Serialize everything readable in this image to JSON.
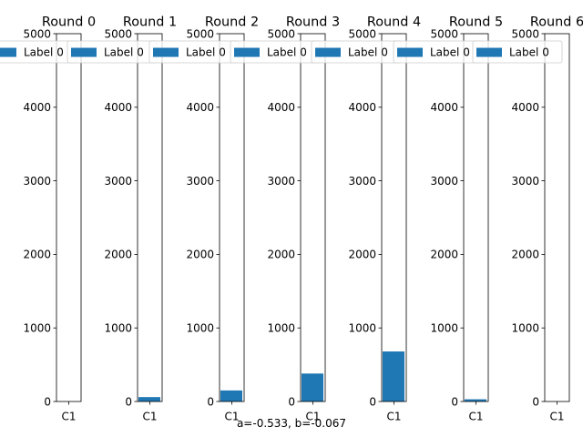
{
  "chart_data": {
    "type": "bar",
    "layout": "small-multiples",
    "bar_color": "#1f77b4",
    "categories": [
      "C1"
    ],
    "ylim": [
      0,
      5000
    ],
    "yticks": [
      0,
      1000,
      2000,
      3000,
      4000,
      5000
    ],
    "legend": {
      "label": "Label 0",
      "placement": "top-center"
    },
    "panels": [
      {
        "title": "Round 0",
        "values": [
          0
        ]
      },
      {
        "title": "Round 1",
        "values": [
          60
        ]
      },
      {
        "title": "Round 2",
        "values": [
          150
        ]
      },
      {
        "title": "Round 3",
        "values": [
          380
        ]
      },
      {
        "title": "Round 4",
        "values": [
          680
        ]
      },
      {
        "title": "Round 5",
        "values": [
          30
        ]
      },
      {
        "title": "Round 6",
        "values": [
          0
        ]
      }
    ],
    "caption": "a=-0.533, b=-0.067"
  }
}
